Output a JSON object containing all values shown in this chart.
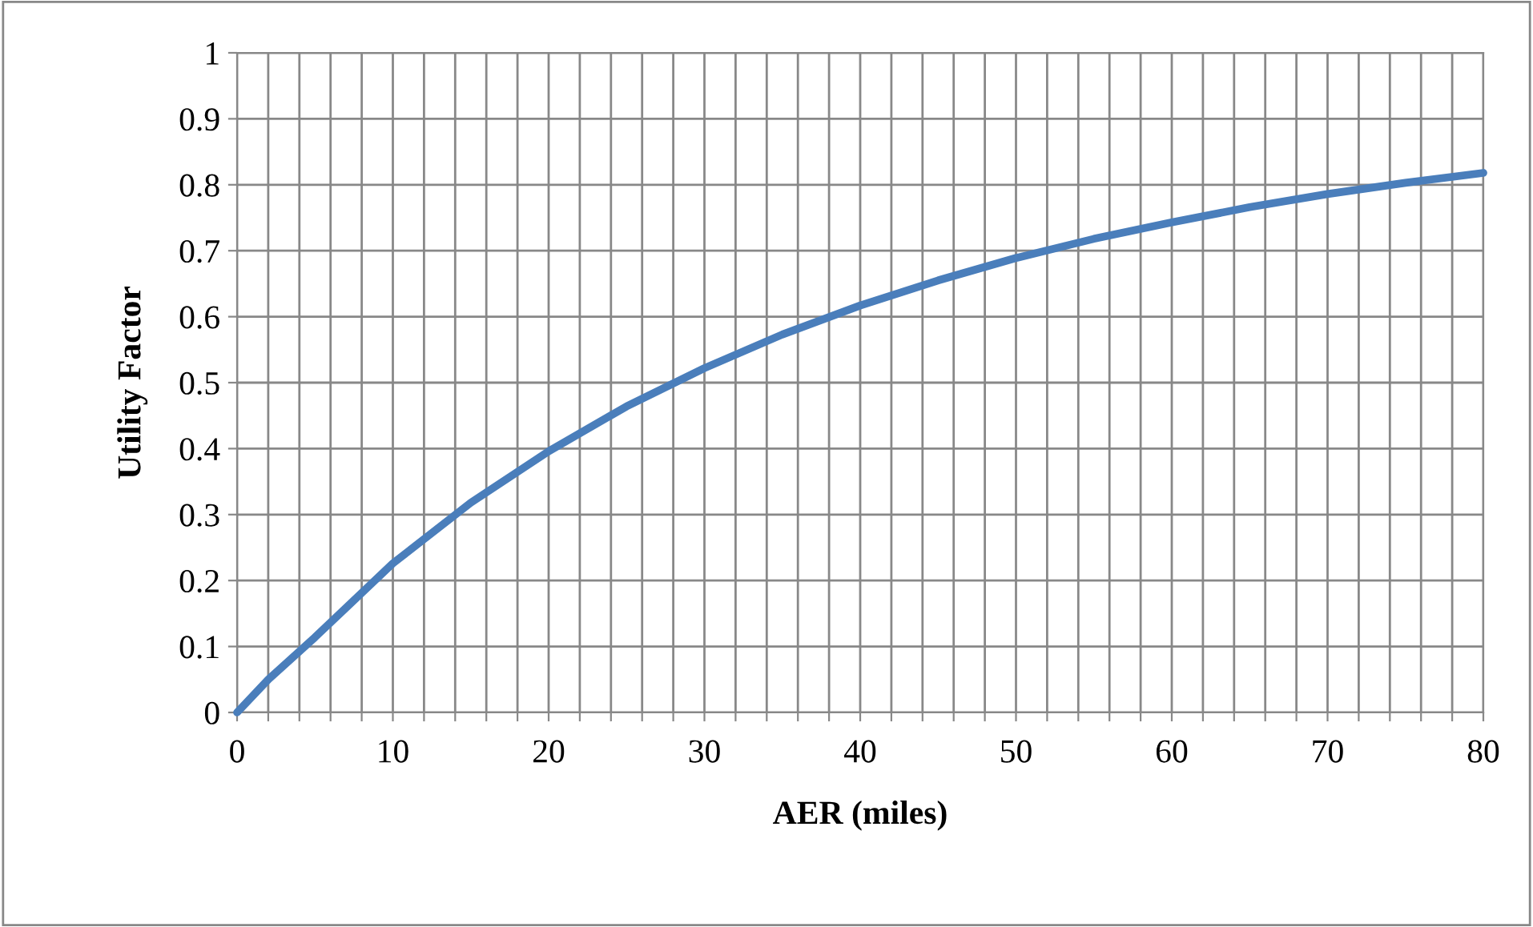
{
  "chart_data": {
    "type": "line",
    "xlabel": "AER (miles)",
    "ylabel": "Utility Factor",
    "x": [
      0,
      2,
      5,
      10,
      15,
      20,
      25,
      30,
      35,
      40,
      45,
      50,
      55,
      60,
      65,
      70,
      75,
      80
    ],
    "series": [
      {
        "color": "#4a7ebb",
        "values": [
          0,
          0.05,
          0.114,
          0.226,
          0.318,
          0.396,
          0.464,
          0.522,
          0.573,
          0.617,
          0.655,
          0.689,
          0.718,
          0.743,
          0.766,
          0.786,
          0.803,
          0.818
        ]
      }
    ],
    "xlim": [
      0,
      80
    ],
    "ylim": [
      0,
      1
    ],
    "xticks": [
      0,
      {
        "value": 2,
        "label": null
      },
      {
        "value": 4,
        "label": null
      },
      {
        "value": 6,
        "label": null
      },
      {
        "value": 8,
        "label": null
      },
      10,
      {
        "value": 12,
        "label": null
      },
      {
        "value": 14,
        "label": null
      },
      {
        "value": 16,
        "label": null
      },
      {
        "value": 18,
        "label": null
      },
      20,
      {
        "value": 22,
        "label": null
      },
      {
        "value": 24,
        "label": null
      },
      {
        "value": 26,
        "label": null
      },
      {
        "value": 28,
        "label": null
      },
      30,
      {
        "value": 32,
        "label": null
      },
      {
        "value": 34,
        "label": null
      },
      {
        "value": 36,
        "label": null
      },
      {
        "value": 38,
        "label": null
      },
      40,
      {
        "value": 42,
        "label": null
      },
      {
        "value": 44,
        "label": null
      },
      {
        "value": 46,
        "label": null
      },
      {
        "value": 48,
        "label": null
      },
      50,
      {
        "value": 52,
        "label": null
      },
      {
        "value": 54,
        "label": null
      },
      {
        "value": 56,
        "label": null
      },
      {
        "value": 58,
        "label": null
      },
      60,
      {
        "value": 62,
        "label": null
      },
      {
        "value": 64,
        "label": null
      },
      {
        "value": 66,
        "label": null
      },
      {
        "value": 68,
        "label": null
      },
      70,
      {
        "value": 72,
        "label": null
      },
      {
        "value": 74,
        "label": null
      },
      {
        "value": 76,
        "label": null
      },
      {
        "value": 78,
        "label": null
      },
      80
    ],
    "yticks": [
      0,
      0.1,
      0.2,
      0.3,
      0.4,
      0.5,
      0.6,
      0.7,
      0.8,
      0.9,
      1
    ],
    "grid": true,
    "marker": "none",
    "line_style": "solid"
  }
}
